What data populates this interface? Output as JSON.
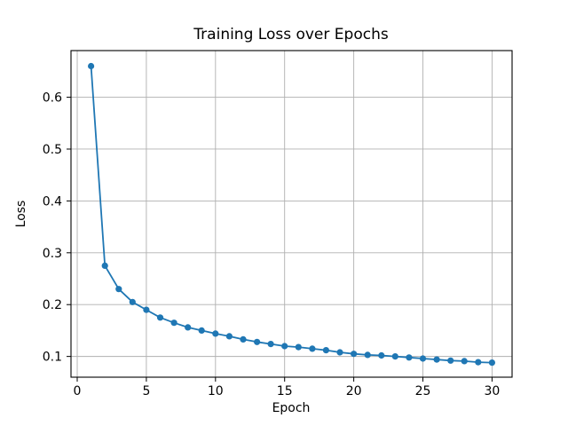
{
  "chart_data": {
    "type": "line",
    "title": "Training Loss over Epochs",
    "xlabel": "Epoch",
    "ylabel": "Loss",
    "x": [
      1,
      2,
      3,
      4,
      5,
      6,
      7,
      8,
      9,
      10,
      11,
      12,
      13,
      14,
      15,
      16,
      17,
      18,
      19,
      20,
      21,
      22,
      23,
      24,
      25,
      26,
      27,
      28,
      29,
      30
    ],
    "values": [
      0.66,
      0.275,
      0.23,
      0.205,
      0.19,
      0.175,
      0.165,
      0.156,
      0.15,
      0.144,
      0.139,
      0.133,
      0.128,
      0.124,
      0.12,
      0.118,
      0.115,
      0.112,
      0.108,
      0.105,
      0.103,
      0.102,
      0.1,
      0.098,
      0.096,
      0.094,
      0.092,
      0.091,
      0.089,
      0.088
    ],
    "xticks": [
      0,
      5,
      10,
      15,
      20,
      25,
      30
    ],
    "yticks": [
      0.1,
      0.2,
      0.3,
      0.4,
      0.5,
      0.6
    ],
    "ytick_labels": [
      "0.1",
      "0.2",
      "0.3",
      "0.4",
      "0.5",
      "0.6"
    ],
    "xtick_labels": [
      "0",
      "5",
      "10",
      "15",
      "20",
      "25",
      "30"
    ],
    "xlim": [
      -0.45,
      31.45
    ],
    "ylim": [
      0.06,
      0.69
    ],
    "grid": true,
    "legend": null,
    "line_color": "#1f77b4",
    "marker": "circle",
    "grid_color": "#b0b0b0",
    "spine_color": "#000000",
    "background_color": "#ffffff"
  }
}
